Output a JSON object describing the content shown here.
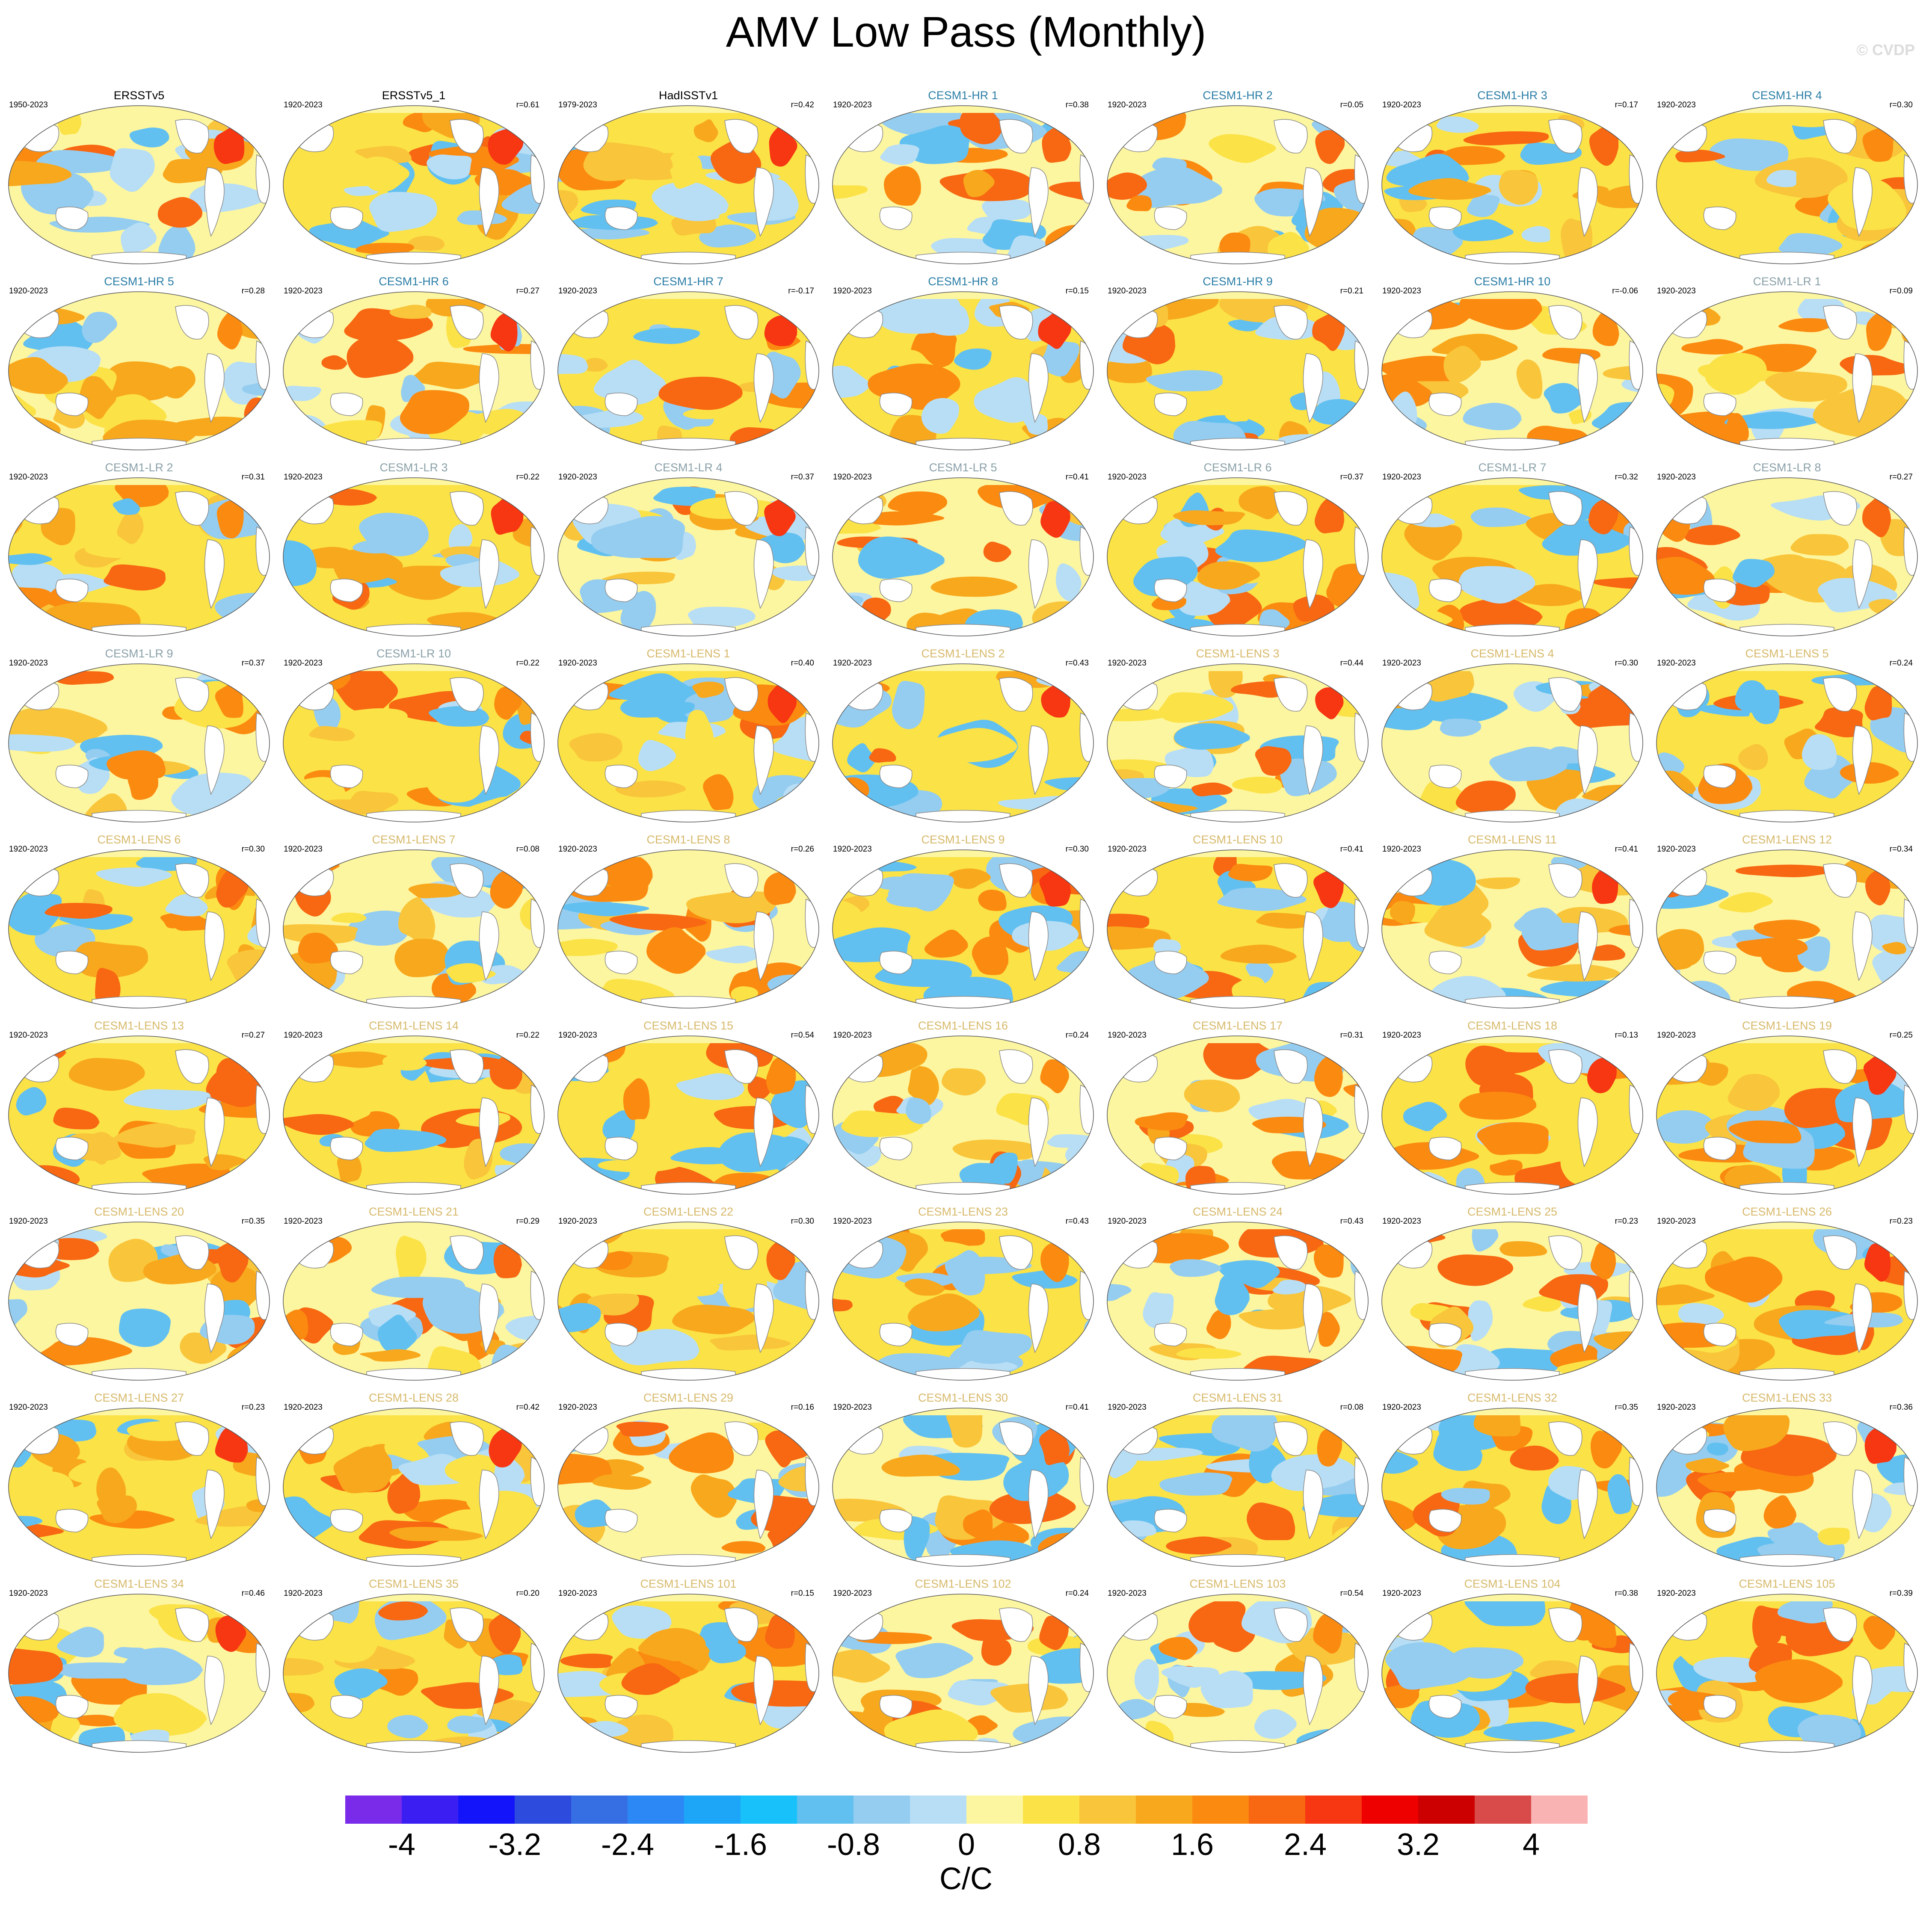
{
  "title": "AMV Low Pass (Monthly)",
  "watermark": "© CVDP",
  "units": "C/C",
  "colors": {
    "obs_title": "#000000",
    "hr_title": "#2b7ea7",
    "lr_title": "#8aa0a8",
    "lens_title": "#d7b96a"
  },
  "colorbar": {
    "colors": [
      "#7a2bea",
      "#3b1ff2",
      "#1414fa",
      "#2d4bdc",
      "#366ee3",
      "#2b88f5",
      "#1da6f7",
      "#18c1fa",
      "#62c0f0",
      "#95cdf0",
      "#b8def5",
      "#fdf6a0",
      "#fbe247",
      "#f9c53a",
      "#f8a81c",
      "#fb8a10",
      "#f86712",
      "#f73612",
      "#ee0000",
      "#cc0000",
      "#d94a4a",
      "#fab3b3"
    ],
    "tick_labels": [
      "-4",
      "-3.2",
      "-2.4",
      "-1.6",
      "-0.8",
      "0",
      "0.8",
      "1.6",
      "2.4",
      "3.2",
      "4"
    ],
    "tick_boundaries": [
      1,
      3,
      5,
      7,
      9,
      11,
      13,
      15,
      17,
      19,
      21
    ]
  },
  "panels": [
    {
      "title": "ERSSTv5",
      "years": "1950-2023",
      "r": "",
      "group": "obs"
    },
    {
      "title": "ERSSTv5_1",
      "years": "1920-2023",
      "r": "r=0.61",
      "group": "obs"
    },
    {
      "title": "HadISSTv1",
      "years": "1979-2023",
      "r": "r=0.42",
      "group": "obs"
    },
    {
      "title": "CESM1-HR 1",
      "years": "1920-2023",
      "r": "r=0.38",
      "group": "hr"
    },
    {
      "title": "CESM1-HR 2",
      "years": "1920-2023",
      "r": "r=0.05",
      "group": "hr"
    },
    {
      "title": "CESM1-HR 3",
      "years": "1920-2023",
      "r": "r=0.17",
      "group": "hr"
    },
    {
      "title": "CESM1-HR 4",
      "years": "1920-2023",
      "r": "r=0.30",
      "group": "hr"
    },
    {
      "title": "CESM1-HR 5",
      "years": "1920-2023",
      "r": "r=0.28",
      "group": "hr"
    },
    {
      "title": "CESM1-HR 6",
      "years": "1920-2023",
      "r": "r=0.27",
      "group": "hr"
    },
    {
      "title": "CESM1-HR 7",
      "years": "1920-2023",
      "r": "r=-0.17",
      "group": "hr"
    },
    {
      "title": "CESM1-HR 8",
      "years": "1920-2023",
      "r": "r=0.15",
      "group": "hr"
    },
    {
      "title": "CESM1-HR 9",
      "years": "1920-2023",
      "r": "r=0.21",
      "group": "hr"
    },
    {
      "title": "CESM1-HR 10",
      "years": "1920-2023",
      "r": "r=-0.06",
      "group": "hr"
    },
    {
      "title": "CESM1-LR 1",
      "years": "1920-2023",
      "r": "r=0.09",
      "group": "lr"
    },
    {
      "title": "CESM1-LR 2",
      "years": "1920-2023",
      "r": "r=0.31",
      "group": "lr"
    },
    {
      "title": "CESM1-LR 3",
      "years": "1920-2023",
      "r": "r=0.22",
      "group": "lr"
    },
    {
      "title": "CESM1-LR 4",
      "years": "1920-2023",
      "r": "r=0.37",
      "group": "lr"
    },
    {
      "title": "CESM1-LR 5",
      "years": "1920-2023",
      "r": "r=0.41",
      "group": "lr"
    },
    {
      "title": "CESM1-LR 6",
      "years": "1920-2023",
      "r": "r=0.37",
      "group": "lr"
    },
    {
      "title": "CESM1-LR 7",
      "years": "1920-2023",
      "r": "r=0.32",
      "group": "lr"
    },
    {
      "title": "CESM1-LR 8",
      "years": "1920-2023",
      "r": "r=0.27",
      "group": "lr"
    },
    {
      "title": "CESM1-LR 9",
      "years": "1920-2023",
      "r": "r=0.37",
      "group": "lr"
    },
    {
      "title": "CESM1-LR 10",
      "years": "1920-2023",
      "r": "r=0.22",
      "group": "lr"
    },
    {
      "title": "CESM1-LENS 1",
      "years": "1920-2023",
      "r": "r=0.40",
      "group": "lens"
    },
    {
      "title": "CESM1-LENS 2",
      "years": "1920-2023",
      "r": "r=0.43",
      "group": "lens"
    },
    {
      "title": "CESM1-LENS 3",
      "years": "1920-2023",
      "r": "r=0.44",
      "group": "lens"
    },
    {
      "title": "CESM1-LENS 4",
      "years": "1920-2023",
      "r": "r=0.30",
      "group": "lens"
    },
    {
      "title": "CESM1-LENS 5",
      "years": "1920-2023",
      "r": "r=0.24",
      "group": "lens"
    },
    {
      "title": "CESM1-LENS 6",
      "years": "1920-2023",
      "r": "r=0.30",
      "group": "lens"
    },
    {
      "title": "CESM1-LENS 7",
      "years": "1920-2023",
      "r": "r=0.08",
      "group": "lens"
    },
    {
      "title": "CESM1-LENS 8",
      "years": "1920-2023",
      "r": "r=0.26",
      "group": "lens"
    },
    {
      "title": "CESM1-LENS 9",
      "years": "1920-2023",
      "r": "r=0.30",
      "group": "lens"
    },
    {
      "title": "CESM1-LENS 10",
      "years": "1920-2023",
      "r": "r=0.41",
      "group": "lens"
    },
    {
      "title": "CESM1-LENS 11",
      "years": "1920-2023",
      "r": "r=0.41",
      "group": "lens"
    },
    {
      "title": "CESM1-LENS 12",
      "years": "1920-2023",
      "r": "r=0.34",
      "group": "lens"
    },
    {
      "title": "CESM1-LENS 13",
      "years": "1920-2023",
      "r": "r=0.27",
      "group": "lens"
    },
    {
      "title": "CESM1-LENS 14",
      "years": "1920-2023",
      "r": "r=0.22",
      "group": "lens"
    },
    {
      "title": "CESM1-LENS 15",
      "years": "1920-2023",
      "r": "r=0.54",
      "group": "lens"
    },
    {
      "title": "CESM1-LENS 16",
      "years": "1920-2023",
      "r": "r=0.24",
      "group": "lens"
    },
    {
      "title": "CESM1-LENS 17",
      "years": "1920-2023",
      "r": "r=0.31",
      "group": "lens"
    },
    {
      "title": "CESM1-LENS 18",
      "years": "1920-2023",
      "r": "r=0.13",
      "group": "lens"
    },
    {
      "title": "CESM1-LENS 19",
      "years": "1920-2023",
      "r": "r=0.25",
      "group": "lens"
    },
    {
      "title": "CESM1-LENS 20",
      "years": "1920-2023",
      "r": "r=0.35",
      "group": "lens"
    },
    {
      "title": "CESM1-LENS 21",
      "years": "1920-2023",
      "r": "r=0.29",
      "group": "lens"
    },
    {
      "title": "CESM1-LENS 22",
      "years": "1920-2023",
      "r": "r=0.30",
      "group": "lens"
    },
    {
      "title": "CESM1-LENS 23",
      "years": "1920-2023",
      "r": "r=0.43",
      "group": "lens"
    },
    {
      "title": "CESM1-LENS 24",
      "years": "1920-2023",
      "r": "r=0.43",
      "group": "lens"
    },
    {
      "title": "CESM1-LENS 25",
      "years": "1920-2023",
      "r": "r=0.23",
      "group": "lens"
    },
    {
      "title": "CESM1-LENS 26",
      "years": "1920-2023",
      "r": "r=0.23",
      "group": "lens"
    },
    {
      "title": "CESM1-LENS 27",
      "years": "1920-2023",
      "r": "r=0.23",
      "group": "lens"
    },
    {
      "title": "CESM1-LENS 28",
      "years": "1920-2023",
      "r": "r=0.42",
      "group": "lens"
    },
    {
      "title": "CESM1-LENS 29",
      "years": "1920-2023",
      "r": "r=0.16",
      "group": "lens"
    },
    {
      "title": "CESM1-LENS 30",
      "years": "1920-2023",
      "r": "r=0.41",
      "group": "lens"
    },
    {
      "title": "CESM1-LENS 31",
      "years": "1920-2023",
      "r": "r=0.08",
      "group": "lens"
    },
    {
      "title": "CESM1-LENS 32",
      "years": "1920-2023",
      "r": "r=0.35",
      "group": "lens"
    },
    {
      "title": "CESM1-LENS 33",
      "years": "1920-2023",
      "r": "r=0.36",
      "group": "lens"
    },
    {
      "title": "CESM1-LENS 34",
      "years": "1920-2023",
      "r": "r=0.46",
      "group": "lens"
    },
    {
      "title": "CESM1-LENS 35",
      "years": "1920-2023",
      "r": "r=0.20",
      "group": "lens"
    },
    {
      "title": "CESM1-LENS 101",
      "years": "1920-2023",
      "r": "r=0.15",
      "group": "lens"
    },
    {
      "title": "CESM1-LENS 102",
      "years": "1920-2023",
      "r": "r=0.24",
      "group": "lens"
    },
    {
      "title": "CESM1-LENS 103",
      "years": "1920-2023",
      "r": "r=0.54",
      "group": "lens"
    },
    {
      "title": "CESM1-LENS 104",
      "years": "1920-2023",
      "r": "r=0.38",
      "group": "lens"
    },
    {
      "title": "CESM1-LENS 105",
      "years": "1920-2023",
      "r": "r=0.39",
      "group": "lens"
    }
  ]
}
